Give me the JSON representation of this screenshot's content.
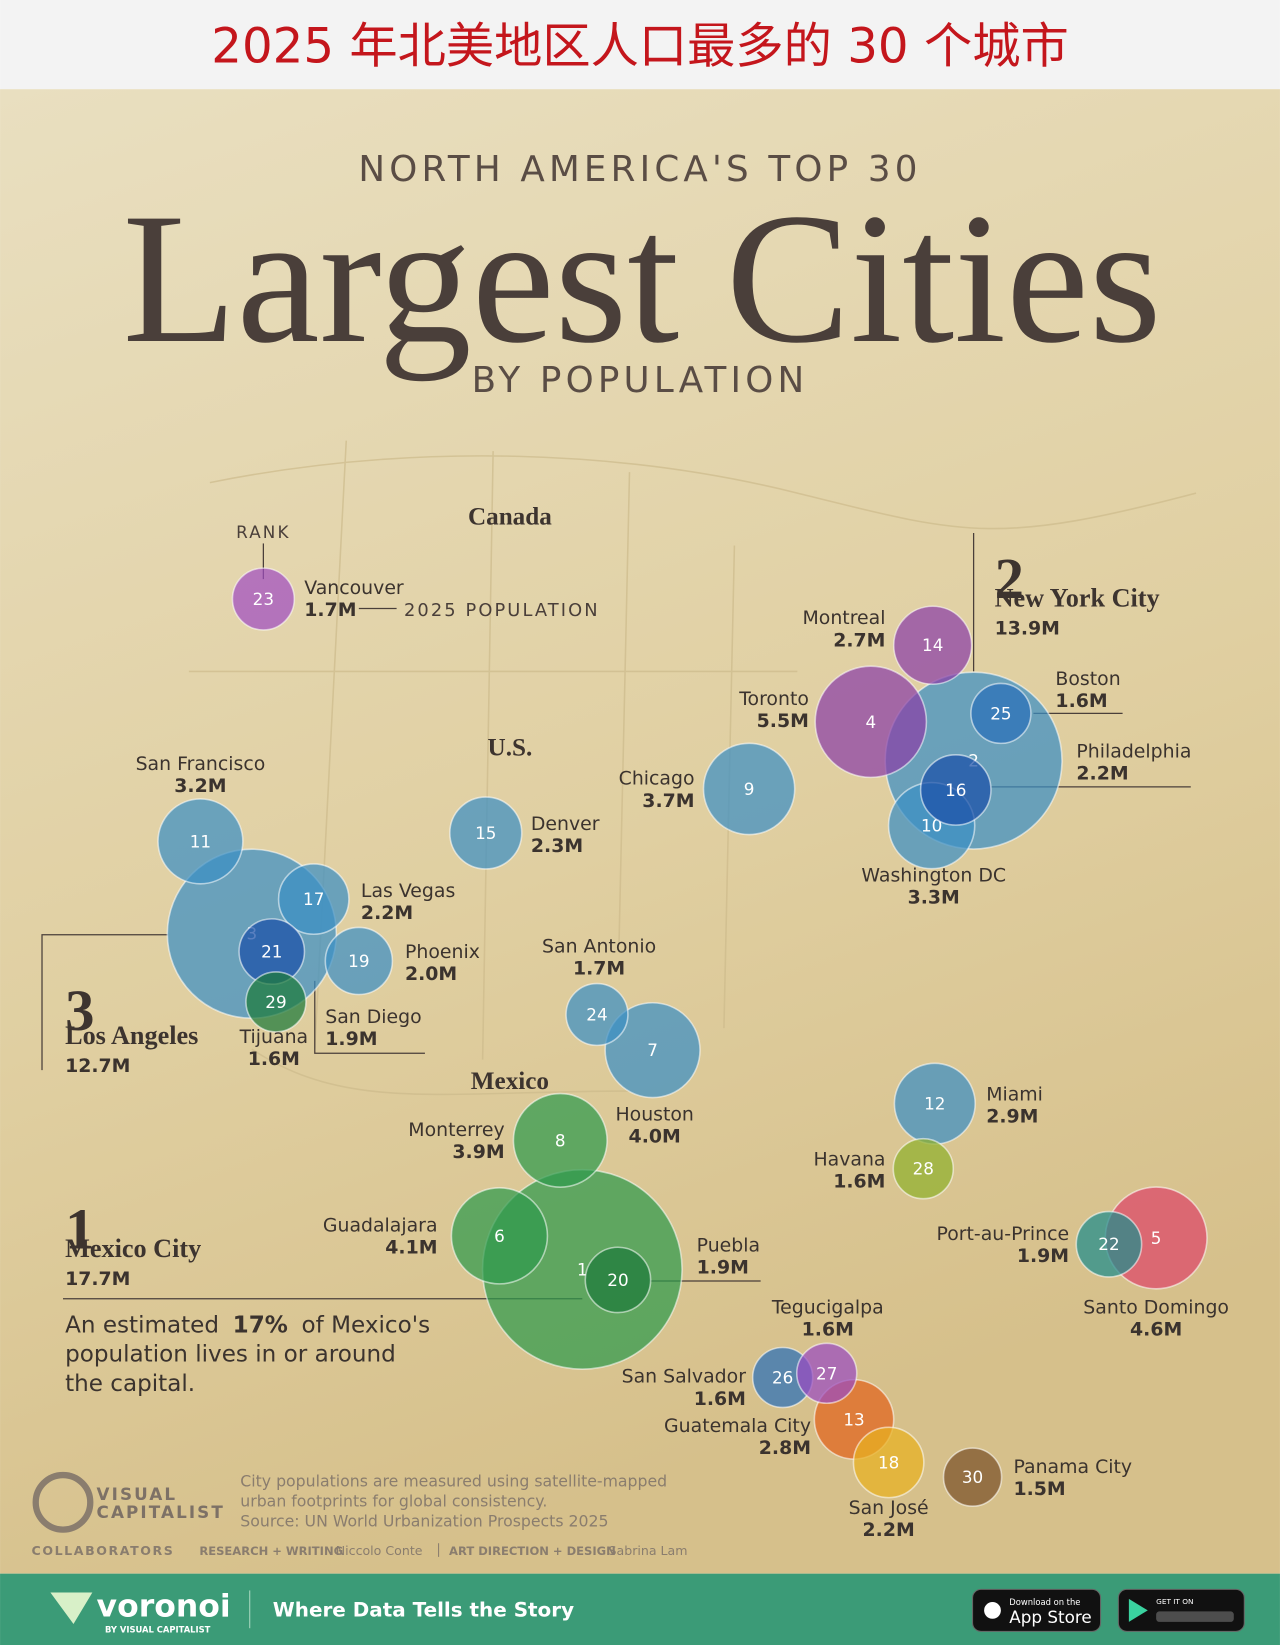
{
  "banner": {
    "title": "2025 年北美地区人口最多的 30 个城市"
  },
  "header": {
    "kicker": "NORTH AMERICA'S TOP 30",
    "title": "Largest Cities",
    "subtitle": "BY POPULATION"
  },
  "regions": [
    "Canada",
    "U.S.",
    "Mexico"
  ],
  "legend": {
    "rank": "RANK",
    "population": "2025 POPULATION"
  },
  "cities": [
    {
      "rank": 1,
      "name": "Mexico City",
      "population": 17.7,
      "population_label": "17.7M",
      "color": "#2f9a4c"
    },
    {
      "rank": 2,
      "name": "New York City",
      "population": 13.9,
      "population_label": "13.9M",
      "color": "#3b8fc4"
    },
    {
      "rank": 3,
      "name": "Los Angeles",
      "population": 12.7,
      "population_label": "12.7M",
      "color": "#3b8fc4"
    },
    {
      "rank": 4,
      "name": "Toronto",
      "population": 5.5,
      "population_label": "5.5M",
      "color": "#8a3fa6"
    },
    {
      "rank": 5,
      "name": "Santo Domingo",
      "population": 4.6,
      "population_label": "4.6M",
      "color": "#dd4568"
    },
    {
      "rank": 6,
      "name": "Guadalajara",
      "population": 4.1,
      "population_label": "4.1M",
      "color": "#2f9a4c"
    },
    {
      "rank": 7,
      "name": "Houston",
      "population": 4.0,
      "population_label": "4.0M",
      "color": "#3b8fc4"
    },
    {
      "rank": 8,
      "name": "Monterrey",
      "population": 3.9,
      "population_label": "3.9M",
      "color": "#2f9a4c"
    },
    {
      "rank": 9,
      "name": "Chicago",
      "population": 3.7,
      "population_label": "3.7M",
      "color": "#3b8fc4"
    },
    {
      "rank": 10,
      "name": "Washington DC",
      "population": 3.3,
      "population_label": "3.3M",
      "color": "#3b8fc4"
    },
    {
      "rank": 11,
      "name": "San Francisco",
      "population": 3.2,
      "population_label": "3.2M",
      "color": "#3b8fc4"
    },
    {
      "rank": 12,
      "name": "Miami",
      "population": 2.9,
      "population_label": "2.9M",
      "color": "#3b8fc4"
    },
    {
      "rank": 13,
      "name": "Guatemala City",
      "population": 2.8,
      "population_label": "2.8M",
      "color": "#e0631c"
    },
    {
      "rank": 14,
      "name": "Montreal",
      "population": 2.7,
      "population_label": "2.7M",
      "color": "#8a3fa6"
    },
    {
      "rank": 15,
      "name": "Denver",
      "population": 2.3,
      "population_label": "2.3M",
      "color": "#3b8fc4"
    },
    {
      "rank": 16,
      "name": "Philadelphia",
      "population": 2.2,
      "population_label": "2.2M",
      "color": "#1b4fa8"
    },
    {
      "rank": 17,
      "name": "Las Vegas",
      "population": 2.2,
      "population_label": "2.2M",
      "color": "#3b8fc4"
    },
    {
      "rank": 18,
      "name": "San José",
      "population": 2.2,
      "population_label": "2.2M",
      "color": "#e8b020"
    },
    {
      "rank": 19,
      "name": "Phoenix",
      "population": 2.0,
      "population_label": "2.0M",
      "color": "#3b8fc4"
    },
    {
      "rank": 20,
      "name": "Puebla",
      "population": 1.9,
      "population_label": "1.9M",
      "color": "#1d7a3a"
    },
    {
      "rank": 21,
      "name": "San Diego",
      "population": 1.9,
      "population_label": "1.9M",
      "color": "#1b4fa8"
    },
    {
      "rank": 22,
      "name": "Port-au-Prince",
      "population": 1.9,
      "population_label": "1.9M",
      "color": "#1e8c8c"
    },
    {
      "rank": 23,
      "name": "Vancouver",
      "population": 1.7,
      "population_label": "1.7M",
      "color": "#a14ec0"
    },
    {
      "rank": 24,
      "name": "San Antonio",
      "population": 1.7,
      "population_label": "1.7M",
      "color": "#3b8fc4"
    },
    {
      "rank": 25,
      "name": "Boston",
      "population": 1.6,
      "population_label": "1.6M",
      "color": "#2a6fb8"
    },
    {
      "rank": 26,
      "name": "San Salvador",
      "population": 1.6,
      "population_label": "1.6M",
      "color": "#2a6fb8"
    },
    {
      "rank": 27,
      "name": "Tegucigalpa",
      "population": 1.6,
      "population_label": "1.6M",
      "color": "#9a4bc0"
    },
    {
      "rank": 28,
      "name": "Havana",
      "population": 1.6,
      "population_label": "1.6M",
      "color": "#8fb02c"
    },
    {
      "rank": 29,
      "name": "Tijuana",
      "population": 1.6,
      "population_label": "1.6M",
      "color": "#1d7a3a"
    },
    {
      "rank": 30,
      "name": "Panama City",
      "population": 1.5,
      "population_label": "1.5M",
      "color": "#7a5028"
    }
  ],
  "annotation": {
    "lead": "An estimated",
    "highlight": "17%",
    "rest": "of Mexico's",
    "line2": "population lives in or around",
    "line3": "the capital."
  },
  "notes": [
    "City populations are measured using satellite-mapped",
    "urban footprints for global consistency.",
    "Source: UN World Urbanization Prospects 2025"
  ],
  "brand": [
    "VISUAL",
    "CAPITALIST"
  ],
  "credits": {
    "heading": "COLLABORATORS",
    "role1": "RESEARCH + WRITING",
    "person1": "Niccolo Conte",
    "role2": "ART DIRECTION + DESIGN",
    "person2": "Sabrina Lam"
  },
  "footer": {
    "logo": "voronoi",
    "logo_sub": "BY VISUAL CAPITALIST",
    "tagline": "Where Data Tells the Story",
    "appstore_small": "Download on the",
    "appstore": "App Store",
    "play_small": "GET IT ON"
  }
}
